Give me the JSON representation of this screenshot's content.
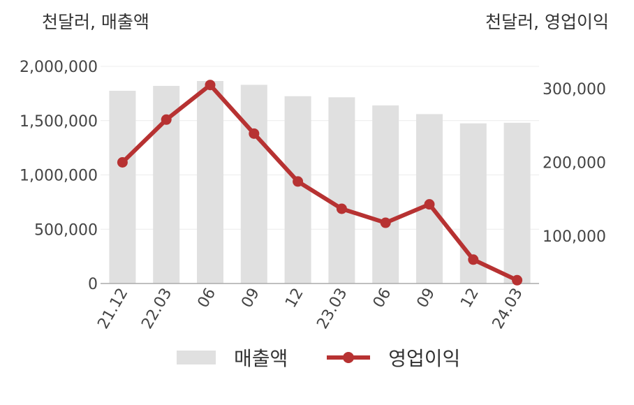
{
  "chart_data": {
    "type": "bar+line",
    "y_left_unit": "천달러, 매출액",
    "y_right_unit": "천달러, 영업이익",
    "categories": [
      "21.12",
      "22.03",
      "06",
      "09",
      "12",
      "23.03",
      "06",
      "09",
      "12",
      "24.03"
    ],
    "series": [
      {
        "name": "매출액",
        "type": "bar",
        "axis": "left",
        "color": "#e0e0e0",
        "values": [
          1775000,
          1820000,
          1865000,
          1830000,
          1725000,
          1715000,
          1640000,
          1560000,
          1475000,
          1480000
        ]
      },
      {
        "name": "영업이익",
        "type": "line",
        "axis": "right",
        "color": "#b73232",
        "values": [
          200000,
          258000,
          305000,
          239000,
          174000,
          137000,
          118000,
          143000,
          68000,
          40000
        ]
      }
    ],
    "y_left": {
      "min": 0,
      "max": 2000000,
      "ticks": [
        0,
        500000,
        1000000,
        1500000,
        2000000
      ],
      "tick_labels": [
        "0",
        "500,000",
        "1,000,000",
        "1,500,000",
        "2,000,000"
      ]
    },
    "y_right": {
      "ticks": [
        100000,
        200000,
        300000
      ],
      "tick_labels": [
        "100,000",
        "200,000",
        "300,000"
      ]
    },
    "grid": true,
    "legend": "bottom"
  }
}
